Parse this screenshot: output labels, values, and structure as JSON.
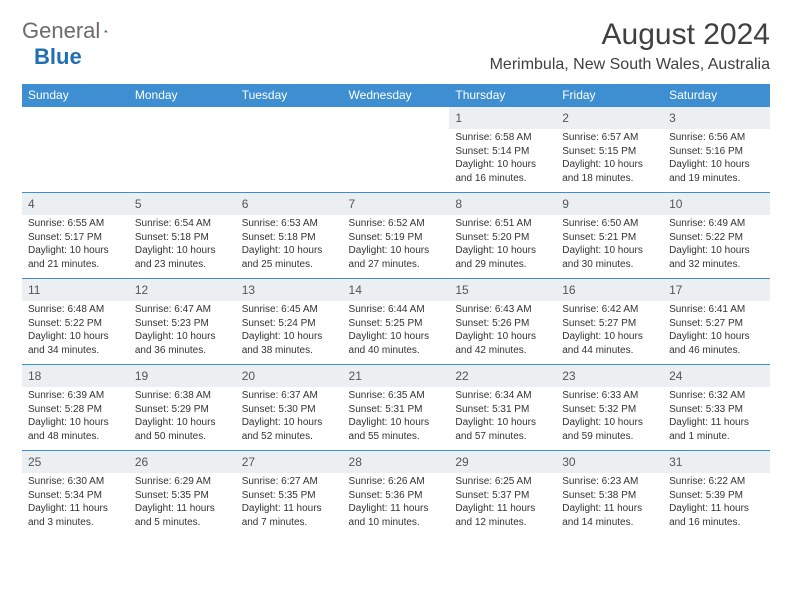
{
  "logo": {
    "text1": "General",
    "text2": "Blue"
  },
  "title": "August 2024",
  "location": "Merimbula, New South Wales, Australia",
  "colors": {
    "header_bg": "#3d8fd1",
    "daynum_bg": "#eceff1",
    "text": "#333333"
  },
  "day_headers": [
    "Sunday",
    "Monday",
    "Tuesday",
    "Wednesday",
    "Thursday",
    "Friday",
    "Saturday"
  ],
  "weeks": [
    [
      {
        "n": "",
        "sr": "",
        "ss": "",
        "dl": ""
      },
      {
        "n": "",
        "sr": "",
        "ss": "",
        "dl": ""
      },
      {
        "n": "",
        "sr": "",
        "ss": "",
        "dl": ""
      },
      {
        "n": "",
        "sr": "",
        "ss": "",
        "dl": ""
      },
      {
        "n": "1",
        "sr": "Sunrise: 6:58 AM",
        "ss": "Sunset: 5:14 PM",
        "dl": "Daylight: 10 hours and 16 minutes."
      },
      {
        "n": "2",
        "sr": "Sunrise: 6:57 AM",
        "ss": "Sunset: 5:15 PM",
        "dl": "Daylight: 10 hours and 18 minutes."
      },
      {
        "n": "3",
        "sr": "Sunrise: 6:56 AM",
        "ss": "Sunset: 5:16 PM",
        "dl": "Daylight: 10 hours and 19 minutes."
      }
    ],
    [
      {
        "n": "4",
        "sr": "Sunrise: 6:55 AM",
        "ss": "Sunset: 5:17 PM",
        "dl": "Daylight: 10 hours and 21 minutes."
      },
      {
        "n": "5",
        "sr": "Sunrise: 6:54 AM",
        "ss": "Sunset: 5:18 PM",
        "dl": "Daylight: 10 hours and 23 minutes."
      },
      {
        "n": "6",
        "sr": "Sunrise: 6:53 AM",
        "ss": "Sunset: 5:18 PM",
        "dl": "Daylight: 10 hours and 25 minutes."
      },
      {
        "n": "7",
        "sr": "Sunrise: 6:52 AM",
        "ss": "Sunset: 5:19 PM",
        "dl": "Daylight: 10 hours and 27 minutes."
      },
      {
        "n": "8",
        "sr": "Sunrise: 6:51 AM",
        "ss": "Sunset: 5:20 PM",
        "dl": "Daylight: 10 hours and 29 minutes."
      },
      {
        "n": "9",
        "sr": "Sunrise: 6:50 AM",
        "ss": "Sunset: 5:21 PM",
        "dl": "Daylight: 10 hours and 30 minutes."
      },
      {
        "n": "10",
        "sr": "Sunrise: 6:49 AM",
        "ss": "Sunset: 5:22 PM",
        "dl": "Daylight: 10 hours and 32 minutes."
      }
    ],
    [
      {
        "n": "11",
        "sr": "Sunrise: 6:48 AM",
        "ss": "Sunset: 5:22 PM",
        "dl": "Daylight: 10 hours and 34 minutes."
      },
      {
        "n": "12",
        "sr": "Sunrise: 6:47 AM",
        "ss": "Sunset: 5:23 PM",
        "dl": "Daylight: 10 hours and 36 minutes."
      },
      {
        "n": "13",
        "sr": "Sunrise: 6:45 AM",
        "ss": "Sunset: 5:24 PM",
        "dl": "Daylight: 10 hours and 38 minutes."
      },
      {
        "n": "14",
        "sr": "Sunrise: 6:44 AM",
        "ss": "Sunset: 5:25 PM",
        "dl": "Daylight: 10 hours and 40 minutes."
      },
      {
        "n": "15",
        "sr": "Sunrise: 6:43 AM",
        "ss": "Sunset: 5:26 PM",
        "dl": "Daylight: 10 hours and 42 minutes."
      },
      {
        "n": "16",
        "sr": "Sunrise: 6:42 AM",
        "ss": "Sunset: 5:27 PM",
        "dl": "Daylight: 10 hours and 44 minutes."
      },
      {
        "n": "17",
        "sr": "Sunrise: 6:41 AM",
        "ss": "Sunset: 5:27 PM",
        "dl": "Daylight: 10 hours and 46 minutes."
      }
    ],
    [
      {
        "n": "18",
        "sr": "Sunrise: 6:39 AM",
        "ss": "Sunset: 5:28 PM",
        "dl": "Daylight: 10 hours and 48 minutes."
      },
      {
        "n": "19",
        "sr": "Sunrise: 6:38 AM",
        "ss": "Sunset: 5:29 PM",
        "dl": "Daylight: 10 hours and 50 minutes."
      },
      {
        "n": "20",
        "sr": "Sunrise: 6:37 AM",
        "ss": "Sunset: 5:30 PM",
        "dl": "Daylight: 10 hours and 52 minutes."
      },
      {
        "n": "21",
        "sr": "Sunrise: 6:35 AM",
        "ss": "Sunset: 5:31 PM",
        "dl": "Daylight: 10 hours and 55 minutes."
      },
      {
        "n": "22",
        "sr": "Sunrise: 6:34 AM",
        "ss": "Sunset: 5:31 PM",
        "dl": "Daylight: 10 hours and 57 minutes."
      },
      {
        "n": "23",
        "sr": "Sunrise: 6:33 AM",
        "ss": "Sunset: 5:32 PM",
        "dl": "Daylight: 10 hours and 59 minutes."
      },
      {
        "n": "24",
        "sr": "Sunrise: 6:32 AM",
        "ss": "Sunset: 5:33 PM",
        "dl": "Daylight: 11 hours and 1 minute."
      }
    ],
    [
      {
        "n": "25",
        "sr": "Sunrise: 6:30 AM",
        "ss": "Sunset: 5:34 PM",
        "dl": "Daylight: 11 hours and 3 minutes."
      },
      {
        "n": "26",
        "sr": "Sunrise: 6:29 AM",
        "ss": "Sunset: 5:35 PM",
        "dl": "Daylight: 11 hours and 5 minutes."
      },
      {
        "n": "27",
        "sr": "Sunrise: 6:27 AM",
        "ss": "Sunset: 5:35 PM",
        "dl": "Daylight: 11 hours and 7 minutes."
      },
      {
        "n": "28",
        "sr": "Sunrise: 6:26 AM",
        "ss": "Sunset: 5:36 PM",
        "dl": "Daylight: 11 hours and 10 minutes."
      },
      {
        "n": "29",
        "sr": "Sunrise: 6:25 AM",
        "ss": "Sunset: 5:37 PM",
        "dl": "Daylight: 11 hours and 12 minutes."
      },
      {
        "n": "30",
        "sr": "Sunrise: 6:23 AM",
        "ss": "Sunset: 5:38 PM",
        "dl": "Daylight: 11 hours and 14 minutes."
      },
      {
        "n": "31",
        "sr": "Sunrise: 6:22 AM",
        "ss": "Sunset: 5:39 PM",
        "dl": "Daylight: 11 hours and 16 minutes."
      }
    ]
  ]
}
